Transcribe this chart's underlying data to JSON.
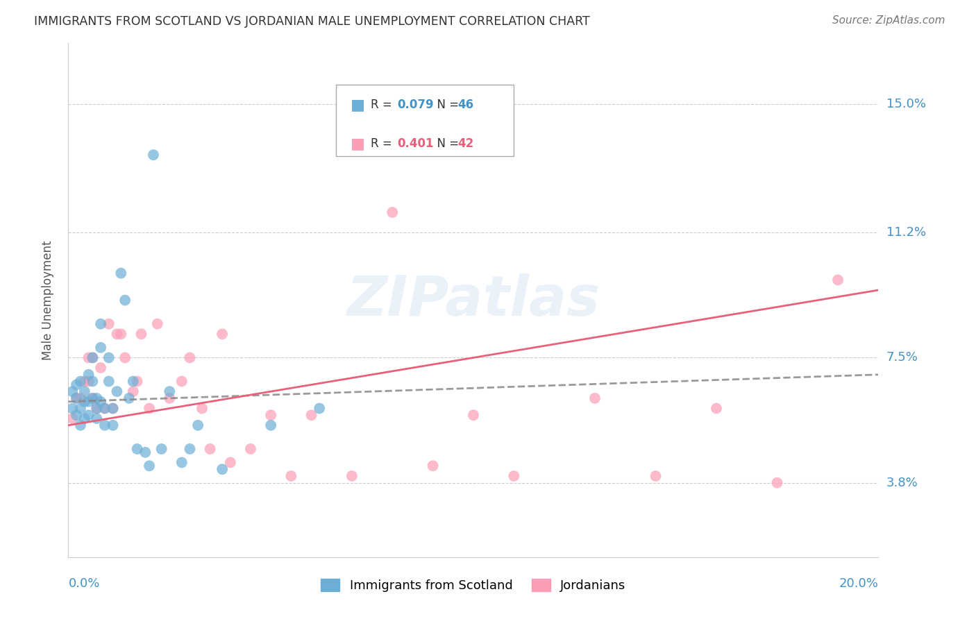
{
  "title": "IMMIGRANTS FROM SCOTLAND VS JORDANIAN MALE UNEMPLOYMENT CORRELATION CHART",
  "source": "Source: ZipAtlas.com",
  "ylabel": "Male Unemployment",
  "ytick_labels": [
    "3.8%",
    "7.5%",
    "11.2%",
    "15.0%"
  ],
  "ytick_values": [
    0.038,
    0.075,
    0.112,
    0.15
  ],
  "xmin": 0.0,
  "xmax": 0.2,
  "ymin": 0.016,
  "ymax": 0.168,
  "legend_blue_r": "0.079",
  "legend_blue_n": "46",
  "legend_pink_r": "0.401",
  "legend_pink_n": "42",
  "legend_label_blue": "Immigrants from Scotland",
  "legend_label_pink": "Jordanians",
  "blue_color": "#6baed6",
  "pink_color": "#fc9db6",
  "blue_line_color": "#5599cc",
  "pink_line_color": "#e8607a",
  "blue_r_color": "#4292c6",
  "pink_r_color": "#e8607a",
  "watermark": "ZIPatlas",
  "blue_scatter_x": [
    0.001,
    0.001,
    0.002,
    0.002,
    0.002,
    0.003,
    0.003,
    0.003,
    0.004,
    0.004,
    0.004,
    0.005,
    0.005,
    0.005,
    0.006,
    0.006,
    0.006,
    0.007,
    0.007,
    0.007,
    0.008,
    0.008,
    0.008,
    0.009,
    0.009,
    0.01,
    0.01,
    0.011,
    0.011,
    0.012,
    0.013,
    0.014,
    0.015,
    0.016,
    0.017,
    0.019,
    0.02,
    0.021,
    0.023,
    0.025,
    0.028,
    0.03,
    0.032,
    0.038,
    0.05,
    0.062
  ],
  "blue_scatter_y": [
    0.06,
    0.065,
    0.058,
    0.063,
    0.067,
    0.06,
    0.055,
    0.068,
    0.057,
    0.065,
    0.062,
    0.07,
    0.062,
    0.058,
    0.075,
    0.068,
    0.063,
    0.06,
    0.057,
    0.063,
    0.085,
    0.078,
    0.062,
    0.06,
    0.055,
    0.075,
    0.068,
    0.06,
    0.055,
    0.065,
    0.1,
    0.092,
    0.063,
    0.068,
    0.048,
    0.047,
    0.043,
    0.135,
    0.048,
    0.065,
    0.044,
    0.048,
    0.055,
    0.042,
    0.055,
    0.06
  ],
  "pink_scatter_x": [
    0.001,
    0.002,
    0.003,
    0.004,
    0.005,
    0.005,
    0.006,
    0.006,
    0.007,
    0.008,
    0.009,
    0.01,
    0.011,
    0.012,
    0.013,
    0.014,
    0.016,
    0.017,
    0.018,
    0.02,
    0.022,
    0.025,
    0.028,
    0.03,
    0.033,
    0.035,
    0.038,
    0.04,
    0.045,
    0.05,
    0.055,
    0.06,
    0.07,
    0.08,
    0.09,
    0.1,
    0.11,
    0.13,
    0.145,
    0.16,
    0.175,
    0.19
  ],
  "pink_scatter_y": [
    0.057,
    0.063,
    0.063,
    0.068,
    0.075,
    0.068,
    0.063,
    0.075,
    0.06,
    0.072,
    0.06,
    0.085,
    0.06,
    0.082,
    0.082,
    0.075,
    0.065,
    0.068,
    0.082,
    0.06,
    0.085,
    0.063,
    0.068,
    0.075,
    0.06,
    0.048,
    0.082,
    0.044,
    0.048,
    0.058,
    0.04,
    0.058,
    0.04,
    0.118,
    0.043,
    0.058,
    0.04,
    0.063,
    0.04,
    0.06,
    0.038,
    0.098
  ],
  "blue_line_x": [
    0.0,
    0.2
  ],
  "blue_line_y": [
    0.062,
    0.07
  ],
  "pink_line_x": [
    0.0,
    0.2
  ],
  "pink_line_y": [
    0.055,
    0.095
  ]
}
